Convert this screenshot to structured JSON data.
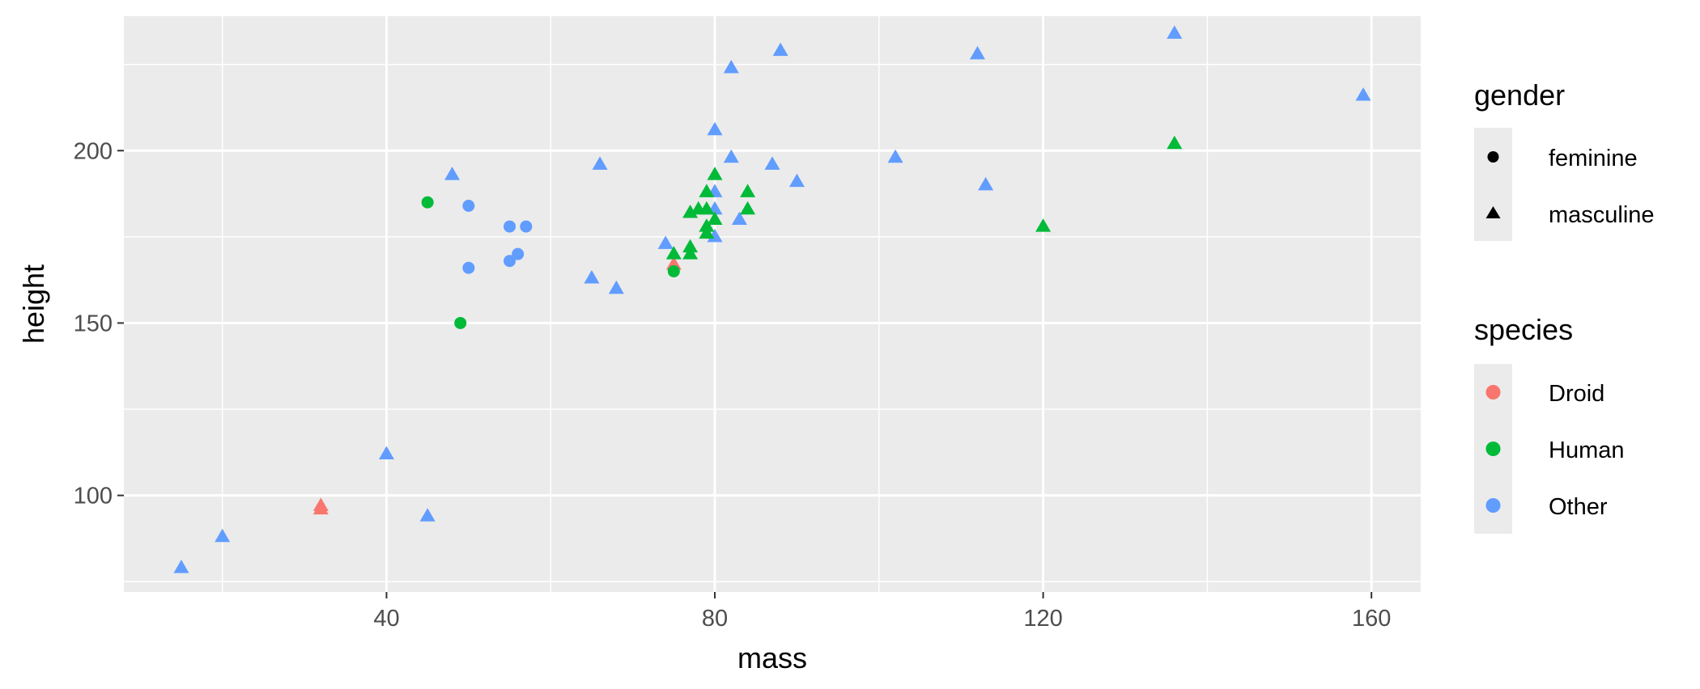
{
  "chart_data": {
    "type": "scatter",
    "title": "",
    "xlabel": "mass",
    "ylabel": "height",
    "xlim": [
      8,
      166
    ],
    "ylim": [
      72,
      239
    ],
    "x_ticks": [
      40,
      80,
      120,
      160
    ],
    "y_ticks": [
      100,
      150,
      200
    ],
    "x_minor": [
      20,
      60,
      100,
      140
    ],
    "y_minor": [
      75,
      125,
      175,
      225
    ],
    "grid": true,
    "legend_position": "right",
    "colors": {
      "Droid": "#F8766D",
      "Human": "#00BA38",
      "Other": "#619CFF"
    },
    "panel_background": "#EBEBEB",
    "legend": {
      "gender": {
        "title": "gender",
        "items": [
          {
            "label": "feminine",
            "shape": "circle"
          },
          {
            "label": "masculine",
            "shape": "triangle"
          }
        ]
      },
      "species": {
        "title": "species",
        "items": [
          {
            "label": "Droid"
          },
          {
            "label": "Human"
          },
          {
            "label": "Other"
          }
        ]
      }
    },
    "points": [
      {
        "x": 15,
        "y": 79,
        "gender": "masculine",
        "species": "Other"
      },
      {
        "x": 20,
        "y": 88,
        "gender": "masculine",
        "species": "Other"
      },
      {
        "x": 32,
        "y": 96,
        "gender": "masculine",
        "species": "Droid"
      },
      {
        "x": 32,
        "y": 97,
        "gender": "masculine",
        "species": "Droid"
      },
      {
        "x": 40,
        "y": 112,
        "gender": "masculine",
        "species": "Other"
      },
      {
        "x": 45,
        "y": 94,
        "gender": "masculine",
        "species": "Other"
      },
      {
        "x": 48,
        "y": 193,
        "gender": "masculine",
        "species": "Other"
      },
      {
        "x": 65,
        "y": 163,
        "gender": "masculine",
        "species": "Other"
      },
      {
        "x": 66,
        "y": 196,
        "gender": "masculine",
        "species": "Other"
      },
      {
        "x": 68,
        "y": 160,
        "gender": "masculine",
        "species": "Other"
      },
      {
        "x": 74,
        "y": 173,
        "gender": "masculine",
        "species": "Other"
      },
      {
        "x": 75,
        "y": 167,
        "gender": "masculine",
        "species": "Droid"
      },
      {
        "x": 80,
        "y": 206,
        "gender": "masculine",
        "species": "Other"
      },
      {
        "x": 80,
        "y": 183,
        "gender": "masculine",
        "species": "Other"
      },
      {
        "x": 80,
        "y": 188,
        "gender": "masculine",
        "species": "Other"
      },
      {
        "x": 80,
        "y": 175,
        "gender": "masculine",
        "species": "Other"
      },
      {
        "x": 82,
        "y": 224,
        "gender": "masculine",
        "species": "Other"
      },
      {
        "x": 82,
        "y": 198,
        "gender": "masculine",
        "species": "Other"
      },
      {
        "x": 83,
        "y": 180,
        "gender": "masculine",
        "species": "Other"
      },
      {
        "x": 87,
        "y": 196,
        "gender": "masculine",
        "species": "Other"
      },
      {
        "x": 88,
        "y": 229,
        "gender": "masculine",
        "species": "Other"
      },
      {
        "x": 90,
        "y": 191,
        "gender": "masculine",
        "species": "Other"
      },
      {
        "x": 102,
        "y": 198,
        "gender": "masculine",
        "species": "Other"
      },
      {
        "x": 112,
        "y": 228,
        "gender": "masculine",
        "species": "Other"
      },
      {
        "x": 113,
        "y": 190,
        "gender": "masculine",
        "species": "Other"
      },
      {
        "x": 136,
        "y": 234,
        "gender": "masculine",
        "species": "Other"
      },
      {
        "x": 159,
        "y": 216,
        "gender": "masculine",
        "species": "Other"
      },
      {
        "x": 75,
        "y": 170,
        "gender": "masculine",
        "species": "Human"
      },
      {
        "x": 77,
        "y": 172,
        "gender": "masculine",
        "species": "Human"
      },
      {
        "x": 77,
        "y": 170,
        "gender": "masculine",
        "species": "Human"
      },
      {
        "x": 77,
        "y": 182,
        "gender": "masculine",
        "species": "Human"
      },
      {
        "x": 78,
        "y": 183,
        "gender": "masculine",
        "species": "Human"
      },
      {
        "x": 79,
        "y": 188,
        "gender": "masculine",
        "species": "Human"
      },
      {
        "x": 79,
        "y": 183,
        "gender": "masculine",
        "species": "Human"
      },
      {
        "x": 79,
        "y": 178,
        "gender": "masculine",
        "species": "Human"
      },
      {
        "x": 79,
        "y": 176,
        "gender": "masculine",
        "species": "Human"
      },
      {
        "x": 80,
        "y": 193,
        "gender": "masculine",
        "species": "Human"
      },
      {
        "x": 80,
        "y": 180,
        "gender": "masculine",
        "species": "Human"
      },
      {
        "x": 84,
        "y": 188,
        "gender": "masculine",
        "species": "Human"
      },
      {
        "x": 84,
        "y": 183,
        "gender": "masculine",
        "species": "Human"
      },
      {
        "x": 120,
        "y": 178,
        "gender": "masculine",
        "species": "Human"
      },
      {
        "x": 136,
        "y": 202,
        "gender": "masculine",
        "species": "Human"
      },
      {
        "x": 45,
        "y": 185,
        "gender": "feminine",
        "species": "Human"
      },
      {
        "x": 49,
        "y": 150,
        "gender": "feminine",
        "species": "Human"
      },
      {
        "x": 75,
        "y": 165,
        "gender": "feminine",
        "species": "Human"
      },
      {
        "x": 50,
        "y": 184,
        "gender": "feminine",
        "species": "Other"
      },
      {
        "x": 50,
        "y": 166,
        "gender": "feminine",
        "species": "Other"
      },
      {
        "x": 55,
        "y": 178,
        "gender": "feminine",
        "species": "Other"
      },
      {
        "x": 55,
        "y": 168,
        "gender": "feminine",
        "species": "Other"
      },
      {
        "x": 56,
        "y": 170,
        "gender": "feminine",
        "species": "Other"
      },
      {
        "x": 57,
        "y": 178,
        "gender": "feminine",
        "species": "Other"
      }
    ]
  }
}
